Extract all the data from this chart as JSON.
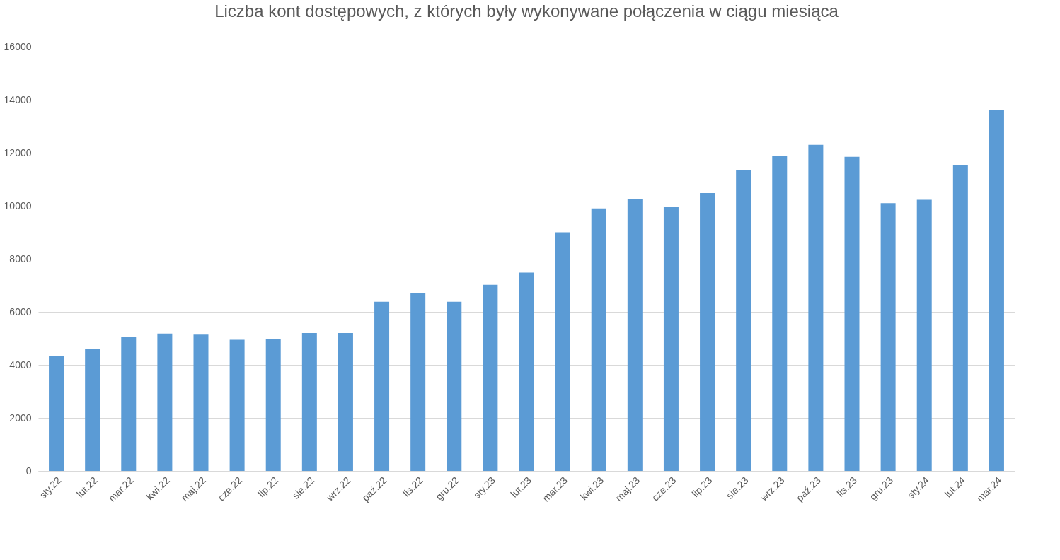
{
  "chart_data": {
    "type": "bar",
    "title": "Liczba kont dostępowych, z których były wykonywane połączenia w ciągu miesiąca",
    "categories": [
      "sty.22",
      "lut.22",
      "mar.22",
      "kwi.22",
      "maj.22",
      "cze.22",
      "lip.22",
      "sie.22",
      "wrz.22",
      "paź.22",
      "lis.22",
      "gru.22",
      "sty.23",
      "lut.23",
      "mar.23",
      "kwi.23",
      "maj.23",
      "cze.23",
      "lip.23",
      "sie.23",
      "wrz.23",
      "paź.23",
      "lis.23",
      "gru.23",
      "sty.24",
      "lut.24",
      "mar.24"
    ],
    "values": [
      4330,
      4600,
      5050,
      5180,
      5140,
      4950,
      4980,
      5200,
      5200,
      6380,
      6720,
      6380,
      7020,
      7480,
      9000,
      9900,
      10250,
      9950,
      10480,
      11350,
      11880,
      12300,
      11850,
      10100,
      10230,
      11550,
      13600
    ],
    "color": "#5b9bd5",
    "ylim": [
      0,
      16000
    ],
    "yticks": [
      0,
      2000,
      4000,
      6000,
      8000,
      10000,
      12000,
      14000,
      16000
    ],
    "grid": "y"
  }
}
